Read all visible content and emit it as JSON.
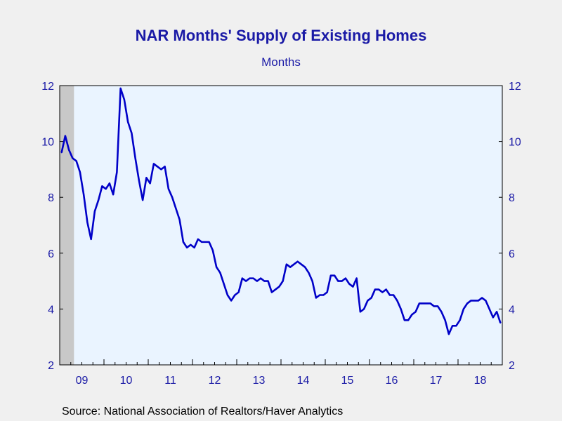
{
  "chart_data": {
    "type": "line",
    "title": "NAR Months' Supply of Existing Homes",
    "subtitle": "Months",
    "source": "Source:  National Association of Realtors/Haver Analytics",
    "xlabel": "",
    "ylabel": "",
    "ylim": [
      2,
      12
    ],
    "yticks": [
      "2",
      "4",
      "6",
      "8",
      "10",
      "12"
    ],
    "x_tick_labels": [
      "09",
      "10",
      "11",
      "12",
      "13",
      "14",
      "15",
      "16",
      "17",
      "18"
    ],
    "x_start": "2009-01",
    "x_end": "2018-12",
    "recession_shading": {
      "start": "2009-01",
      "end": "2009-06",
      "color": "#c8c8c8"
    },
    "colors": {
      "line": "#0000c8",
      "plot_bg": "#eaf4ff",
      "text": "#1a1aa6"
    },
    "grid": false,
    "series": [
      {
        "values": [
          9.6,
          10.2,
          9.7,
          9.4,
          9.3,
          8.9,
          8.1,
          7.1,
          6.5,
          7.5,
          7.9,
          8.4,
          8.3,
          8.5,
          8.1,
          8.9,
          11.9,
          11.5,
          10.7,
          10.3,
          9.4,
          8.6,
          7.9,
          8.7,
          8.5,
          9.2,
          9.1,
          9.0,
          9.1,
          8.3,
          8.0,
          7.6,
          7.2,
          6.4,
          6.2,
          6.3,
          6.2,
          6.5,
          6.4,
          6.4,
          6.4,
          6.1,
          5.5,
          5.3,
          4.9,
          4.5,
          4.3,
          4.5,
          4.6,
          5.1,
          5.0,
          5.1,
          5.1,
          5.0,
          5.1,
          5.0,
          5.0,
          4.6,
          4.7,
          4.8,
          5.0,
          5.6,
          5.5,
          5.6,
          5.7,
          5.6,
          5.5,
          5.3,
          5.0,
          4.4,
          4.5,
          4.5,
          4.6,
          5.2,
          5.2,
          5.0,
          5.0,
          5.1,
          4.9,
          4.8,
          5.1,
          3.9,
          4.0,
          4.3,
          4.4,
          4.7,
          4.7,
          4.6,
          4.7,
          4.5,
          4.5,
          4.3,
          4.0,
          3.6,
          3.6,
          3.8,
          3.9,
          4.2,
          4.2,
          4.2,
          4.2,
          4.1,
          4.1,
          3.9,
          3.6,
          3.1,
          3.4,
          3.4,
          3.6,
          4.0,
          4.2,
          4.3,
          4.3,
          4.3,
          4.4,
          4.3,
          4.0,
          3.7,
          3.9,
          3.5
        ]
      }
    ]
  }
}
